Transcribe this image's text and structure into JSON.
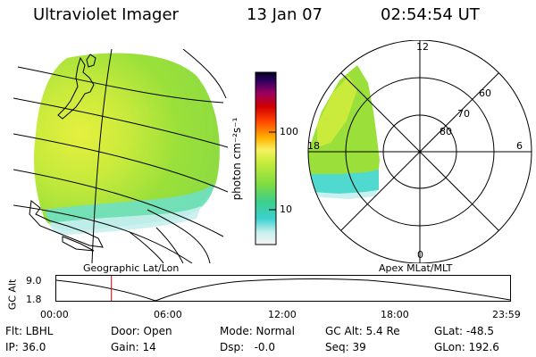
{
  "header": {
    "title": "Ultraviolet Imager",
    "date": "13 Jan 07",
    "time": "02:54:54 UT"
  },
  "colorbar": {
    "unit_label": "photon cm⁻²s⁻¹",
    "tick_100": "100",
    "tick_10": "10",
    "scale": "log"
  },
  "geo_panel": {
    "label": "Geographic Lat/Lon"
  },
  "polar_panel": {
    "label": "Apex MLat/MLT",
    "mlt_labels": {
      "top": "12",
      "right": "6",
      "bottom": "0",
      "left": "18"
    },
    "lat_labels": [
      "60",
      "70",
      "80"
    ]
  },
  "altitude_plot": {
    "y_label": "GC Alt",
    "y_ticks": [
      "9.0",
      "1.8"
    ],
    "x_ticks": [
      "00:00",
      "06:00",
      "12:00",
      "18:00",
      "23:59"
    ],
    "current_time_marker_hours": 2.915
  },
  "status": {
    "flt": "Flt: LBHL",
    "ip": "IP: 36.0",
    "door": "Door: Open",
    "gain": "Gain: 14",
    "mode": "Mode: Normal",
    "dsp": "Dsp:   -0.0",
    "gc_alt": "GC Alt: 5.4 Re",
    "seq": "Seq: 39",
    "glat": "GLat: -48.5",
    "glon": "GLon: 192.6"
  },
  "colors": {
    "fill_green": "#9be03a",
    "fill_yellow": "#d6ee3c",
    "fill_cyan": "#4fd9cf",
    "marker_red": "#d40000"
  }
}
